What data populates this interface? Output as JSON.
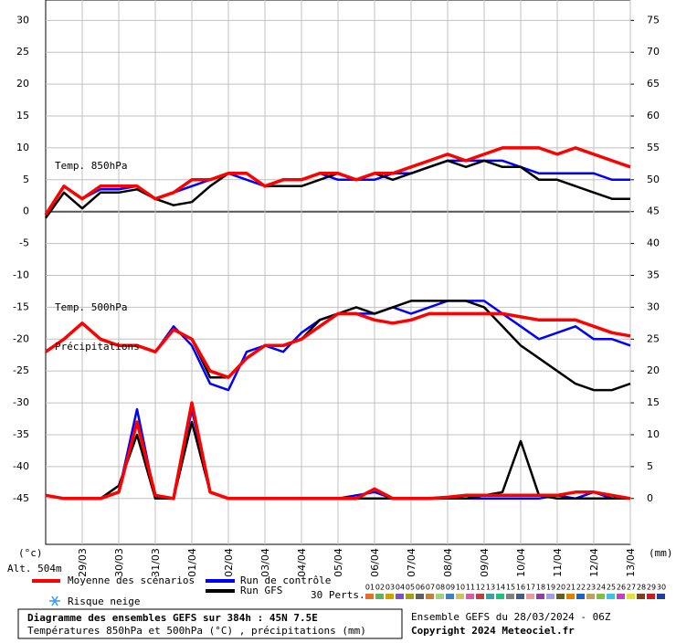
{
  "chart_data": {
    "type": "line",
    "title": "Diagramme des ensembles GEFS sur 384h : 45N 7.5E",
    "subtitle": "Températures 850hPa et 500hPa (°C) , précipitations (mm)",
    "run_info": "Ensemble GEFS du 28/03/2024 - 06Z",
    "copyright": "Copyright 2024 Meteociel.fr",
    "y_label": "(°c)",
    "y2_label": "(mm)",
    "altitude": "Alt. 504m",
    "layer_labels": {
      "t850": "Temp. 850hPa",
      "t500": "Temp. 500hPa",
      "precip": "Précipitations"
    },
    "snow_label": "Risque neige",
    "perturbations_label": "30 Perts.",
    "perturbations": [
      {
        "label": "01",
        "color": "#e07030"
      },
      {
        "label": "02",
        "color": "#60b060"
      },
      {
        "label": "03",
        "color": "#d0a000"
      },
      {
        "label": "04",
        "color": "#8050c0"
      },
      {
        "label": "05",
        "color": "#a0a020"
      },
      {
        "label": "06",
        "color": "#606060"
      },
      {
        "label": "07",
        "color": "#c08040"
      },
      {
        "label": "08",
        "color": "#a0d080"
      },
      {
        "label": "09",
        "color": "#4080c0"
      },
      {
        "label": "10",
        "color": "#d0c060"
      },
      {
        "label": "11",
        "color": "#d060a0"
      },
      {
        "label": "12",
        "color": "#c04040"
      },
      {
        "label": "13",
        "color": "#40a0a0"
      },
      {
        "label": "14",
        "color": "#20c080"
      },
      {
        "label": "15",
        "color": "#808080"
      },
      {
        "label": "16",
        "color": "#406080"
      },
      {
        "label": "17",
        "color": "#e0a0a0"
      },
      {
        "label": "18",
        "color": "#9040a0"
      },
      {
        "label": "19",
        "color": "#a0a0e0"
      },
      {
        "label": "20",
        "color": "#606020"
      },
      {
        "label": "21",
        "color": "#e08000"
      },
      {
        "label": "22",
        "color": "#2060c0"
      },
      {
        "label": "23",
        "color": "#c0a060"
      },
      {
        "label": "24",
        "color": "#80c040"
      },
      {
        "label": "25",
        "color": "#40c0e0"
      },
      {
        "label": "26",
        "color": "#c040c0"
      },
      {
        "label": "27",
        "color": "#e0e040"
      },
      {
        "label": "28",
        "color": "#804020"
      },
      {
        "label": "29",
        "color": "#c02020"
      },
      {
        "label": "30",
        "color": "#2040a0"
      }
    ],
    "categories": [
      null,
      null,
      "29/03",
      null,
      "30/03",
      null,
      "31/03",
      null,
      "01/04",
      null,
      "02/04",
      null,
      "03/04",
      null,
      "04/04",
      null,
      "05/04",
      null,
      "06/04",
      null,
      "07/04",
      null,
      "08/04",
      null,
      "09/04",
      null,
      "10/04",
      null,
      "11/04",
      null,
      "12/04",
      null,
      "13/04"
    ],
    "ylim": [
      -52.2,
      33.2
    ],
    "yticks": [
      30,
      25,
      20,
      15,
      10,
      5,
      0,
      -5,
      -10,
      -15,
      -20,
      -25,
      -30,
      -35,
      -40,
      -45
    ],
    "y2lim": [
      -7.2,
      78.2
    ],
    "y2ticks": [
      75,
      70,
      65,
      60,
      55,
      50,
      45,
      40,
      35,
      30,
      25,
      20,
      15,
      10,
      5,
      0
    ],
    "grid": true,
    "series": [
      {
        "name": "Run de contrôle",
        "color": "#0000ff",
        "t850": [
          -0.5,
          4,
          2,
          3.5,
          3.5,
          4,
          2,
          3,
          4,
          5,
          6,
          5,
          4,
          5,
          5,
          6,
          5,
          5,
          5,
          6,
          6,
          7,
          8,
          8,
          8,
          8,
          7,
          6,
          6,
          6,
          6,
          5,
          5
        ],
        "t500": [
          -22,
          -20,
          -17.5,
          -20,
          -21,
          -21,
          -22,
          -18,
          -21,
          -27,
          -28,
          -22,
          -21,
          -22,
          -19,
          -17,
          -16,
          -16,
          -16,
          -15,
          -16,
          -15,
          -14,
          -14,
          -14,
          -16,
          -18,
          -20,
          -19,
          -18,
          -20,
          -20,
          -21
        ],
        "precip": [
          0.5,
          0,
          0,
          0,
          1,
          14,
          0,
          0,
          14,
          1,
          0,
          0,
          0,
          0,
          0,
          0,
          0,
          0.5,
          1,
          0,
          0,
          0,
          0,
          0,
          0,
          0,
          0,
          0,
          0.5,
          0,
          1,
          0,
          0
        ]
      },
      {
        "name": "Run GFS",
        "color": "#000000",
        "t850": [
          -1,
          3,
          0.5,
          3,
          3,
          3.5,
          2,
          1,
          1.5,
          4,
          6,
          6,
          4,
          4,
          4,
          5,
          6,
          5,
          6,
          5,
          6,
          7,
          8,
          7,
          8,
          7,
          7,
          5,
          5,
          4,
          3,
          2,
          2
        ],
        "t500": [
          -22,
          -20,
          -17.5,
          -20,
          -21,
          -21,
          -22,
          -18.5,
          -20,
          -26,
          -26,
          -23,
          -21,
          -21,
          -20,
          -17,
          -16,
          -15,
          -16,
          -15,
          -14,
          -14,
          -14,
          -14,
          -15,
          -18,
          -21,
          -23,
          -25,
          -27,
          -28,
          -28,
          -27
        ],
        "precip": [
          0.5,
          0,
          0,
          0,
          2,
          10,
          0,
          0,
          12,
          1,
          0,
          0,
          0,
          0,
          0,
          0,
          0,
          0,
          0,
          0,
          0,
          0,
          0,
          0,
          0.5,
          1,
          9,
          0.5,
          0,
          0,
          0,
          0,
          0
        ]
      },
      {
        "name": "Moyenne des scénarios",
        "color": "#ff0000",
        "t850": [
          -0.5,
          4,
          2,
          4,
          4,
          4,
          2,
          3,
          5,
          5,
          6,
          6,
          4,
          5,
          5,
          6,
          6,
          5,
          6,
          6,
          7,
          8,
          9,
          8,
          9,
          10,
          10,
          10,
          9,
          10,
          9,
          8,
          7
        ],
        "t500": [
          -22,
          -20,
          -17.5,
          -20,
          -21,
          -21,
          -22,
          -18.5,
          -20,
          -25,
          -26,
          -23,
          -21,
          -21,
          -20,
          -18,
          -16,
          -16,
          -17,
          -17.5,
          -17,
          -16,
          -16,
          -16,
          -16,
          -16,
          -16.5,
          -17,
          -17,
          -17,
          -18,
          -19,
          -19.5
        ],
        "precip": [
          0.5,
          0,
          0,
          0,
          1,
          12,
          0.5,
          0,
          15,
          1,
          0,
          0,
          0,
          0,
          0,
          0,
          0,
          0,
          1.5,
          0,
          0,
          0,
          0.2,
          0.5,
          0.5,
          0.5,
          0.5,
          0.5,
          0.5,
          1,
          1,
          0.5,
          0
        ]
      }
    ]
  }
}
